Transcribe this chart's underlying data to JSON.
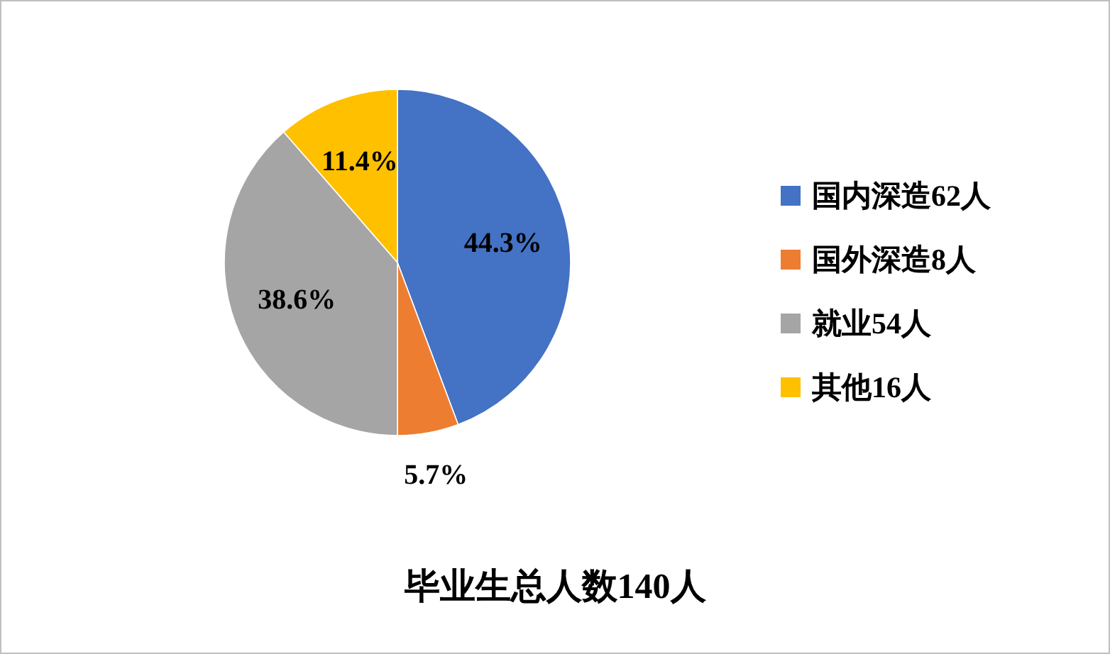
{
  "chart_data": {
    "type": "pie",
    "title": "毕业生总人数140人",
    "categories": [
      "国内深造62人",
      "国外深造8人",
      "就业54人",
      "其他16人"
    ],
    "values": [
      44.3,
      5.7,
      38.6,
      11.4
    ],
    "colors": [
      "#4472c4",
      "#ed7d31",
      "#a5a5a5",
      "#ffc000"
    ],
    "value_labels": [
      "44.3%",
      "5.7%",
      "38.6%",
      "11.4%"
    ],
    "legend": "right"
  }
}
